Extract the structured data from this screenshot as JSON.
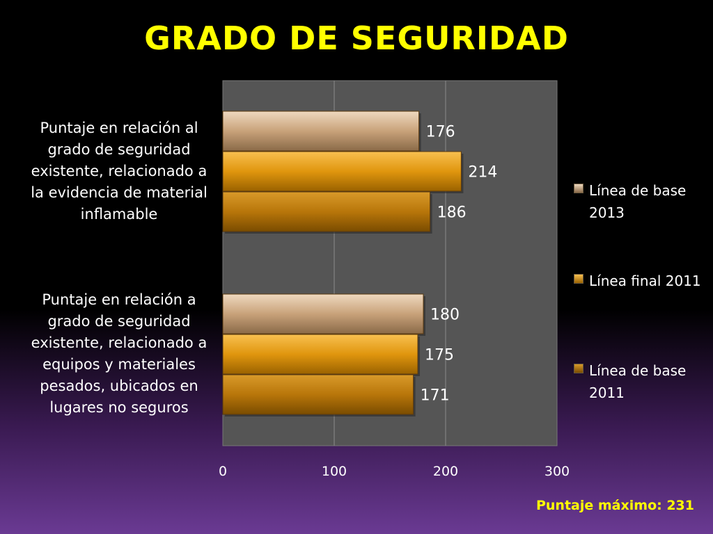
{
  "slide": {
    "title": "GRADO DE SEGURIDAD",
    "footnote": "Puntaje máximo: 231"
  },
  "chart_data": {
    "type": "bar",
    "orientation": "horizontal",
    "title": "GRADO DE SEGURIDAD",
    "categories": [
      "Puntaje en relación al grado de seguridad existente, relacionado a la evidencia de material inflamable",
      "Puntaje en relación a grado de seguridad existente, relacionado a equipos y materiales pesados, ubicados en lugares no seguros"
    ],
    "series": [
      {
        "name": "Línea de base 2013",
        "values": [
          176,
          180
        ],
        "color": "#c8a27a"
      },
      {
        "name": "Línea final 2011",
        "values": [
          214,
          175
        ],
        "color": "#e0960e"
      },
      {
        "name": "Línea de base 2011",
        "values": [
          186,
          171
        ],
        "color": "#b8760a"
      }
    ],
    "xlim": [
      0,
      300
    ],
    "xticks": [
      "0",
      "100",
      "200",
      "300"
    ],
    "grid": true,
    "legend_position": "right",
    "data_labels": true,
    "plot_background": "#555555",
    "xlabel": "",
    "ylabel": ""
  }
}
